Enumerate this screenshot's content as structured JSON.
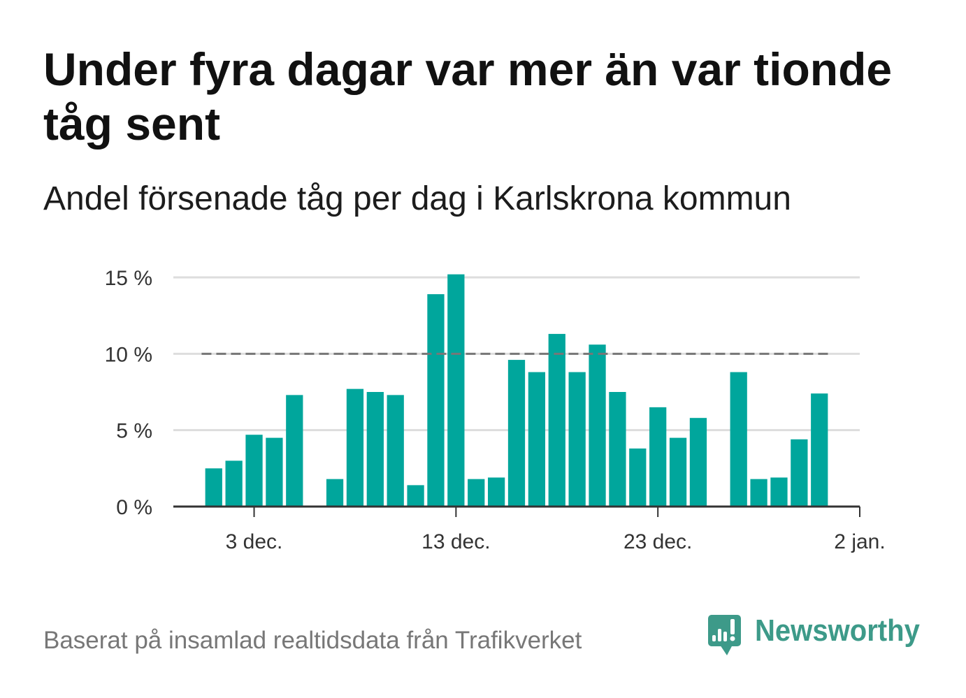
{
  "chart_data": {
    "type": "bar",
    "title": "Under fyra dagar var mer än var tionde tåg sent",
    "subtitle": "Andel försenade tåg per dag i Karlskrona kommun",
    "x": [
      "1 dec.",
      "2 dec.",
      "3 dec.",
      "4 dec.",
      "5 dec.",
      "7 dec.",
      "8 dec.",
      "9 dec.",
      "10 dec.",
      "11 dec.",
      "12 dec.",
      "13 dec.",
      "14 dec.",
      "15 dec.",
      "16 dec.",
      "17 dec.",
      "18 dec.",
      "19 dec.",
      "20 dec.",
      "21 dec.",
      "22 dec.",
      "23 dec.",
      "24 dec.",
      "25 dec.",
      "27 dec.",
      "28 dec.",
      "29 dec.",
      "30 dec.",
      "31 dec."
    ],
    "values": [
      2.5,
      3.0,
      4.7,
      4.5,
      7.3,
      1.8,
      7.7,
      7.5,
      7.3,
      1.4,
      13.9,
      15.2,
      1.8,
      1.9,
      9.6,
      8.8,
      11.3,
      8.8,
      10.6,
      7.5,
      3.8,
      6.5,
      4.5,
      5.8,
      8.8,
      1.8,
      1.9,
      4.4,
      7.4
    ],
    "x_ticks": [
      "3 dec.",
      "13 dec.",
      "23 dec.",
      "2 jan."
    ],
    "y_ticks": [
      0,
      5,
      10,
      15
    ],
    "y_tick_labels": [
      "0 %",
      "5 %",
      "10 %",
      "15 %"
    ],
    "ylim": [
      0,
      15
    ],
    "xlim": [
      "29 nov.",
      "2 jan."
    ],
    "grid": true,
    "reference_line": {
      "value": 10
    }
  },
  "source": "Baserat på insamlad realtidsdata från Trafikverket",
  "logo": {
    "name": "Newsworthy",
    "icon": "newsworthy-logo-icon"
  },
  "colors": {
    "bar": "#00a69c",
    "reference_line": "#777777",
    "grid": "#dddddd",
    "axis": "#333333",
    "logo": "#3d9a89"
  }
}
